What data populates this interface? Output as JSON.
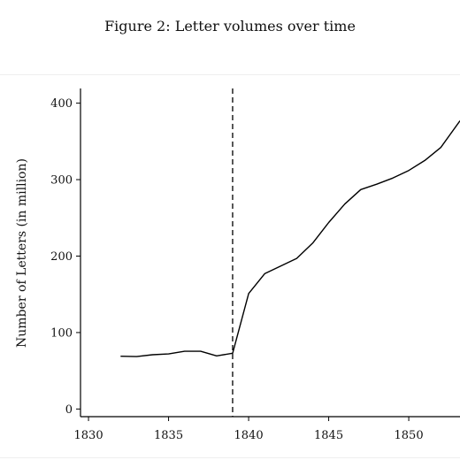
{
  "figure": {
    "caption": "Figure 2: Letter volumes over time"
  },
  "chart_data": {
    "type": "line",
    "title": "Figure 2: Letter volumes over time",
    "xlabel": "",
    "ylabel": "Number of Letters (in million)",
    "xlim": [
      1829.5,
      1853.2
    ],
    "ylim": [
      -10,
      425
    ],
    "xticks": [
      1830,
      1835,
      1840,
      1845,
      1850
    ],
    "yticks": [
      0,
      100,
      200,
      300,
      400
    ],
    "grid": false,
    "series": [
      {
        "color": "#000000",
        "x": [
          1832,
          1833,
          1834,
          1835,
          1836,
          1837,
          1838,
          1839,
          1840,
          1841,
          1842,
          1843,
          1844,
          1845,
          1846,
          1847,
          1848,
          1849,
          1850,
          1851,
          1852,
          1853.2
        ],
        "y": [
          69,
          68.5,
          71,
          72,
          75.5,
          75.5,
          69.5,
          73,
          151,
          177,
          187,
          197,
          217,
          244,
          268,
          287,
          294,
          302,
          312,
          325,
          342,
          377
        ]
      }
    ],
    "reference_lines": [
      {
        "axis": "x",
        "value": 1839,
        "style": "dashed",
        "color": "#000000"
      }
    ]
  }
}
